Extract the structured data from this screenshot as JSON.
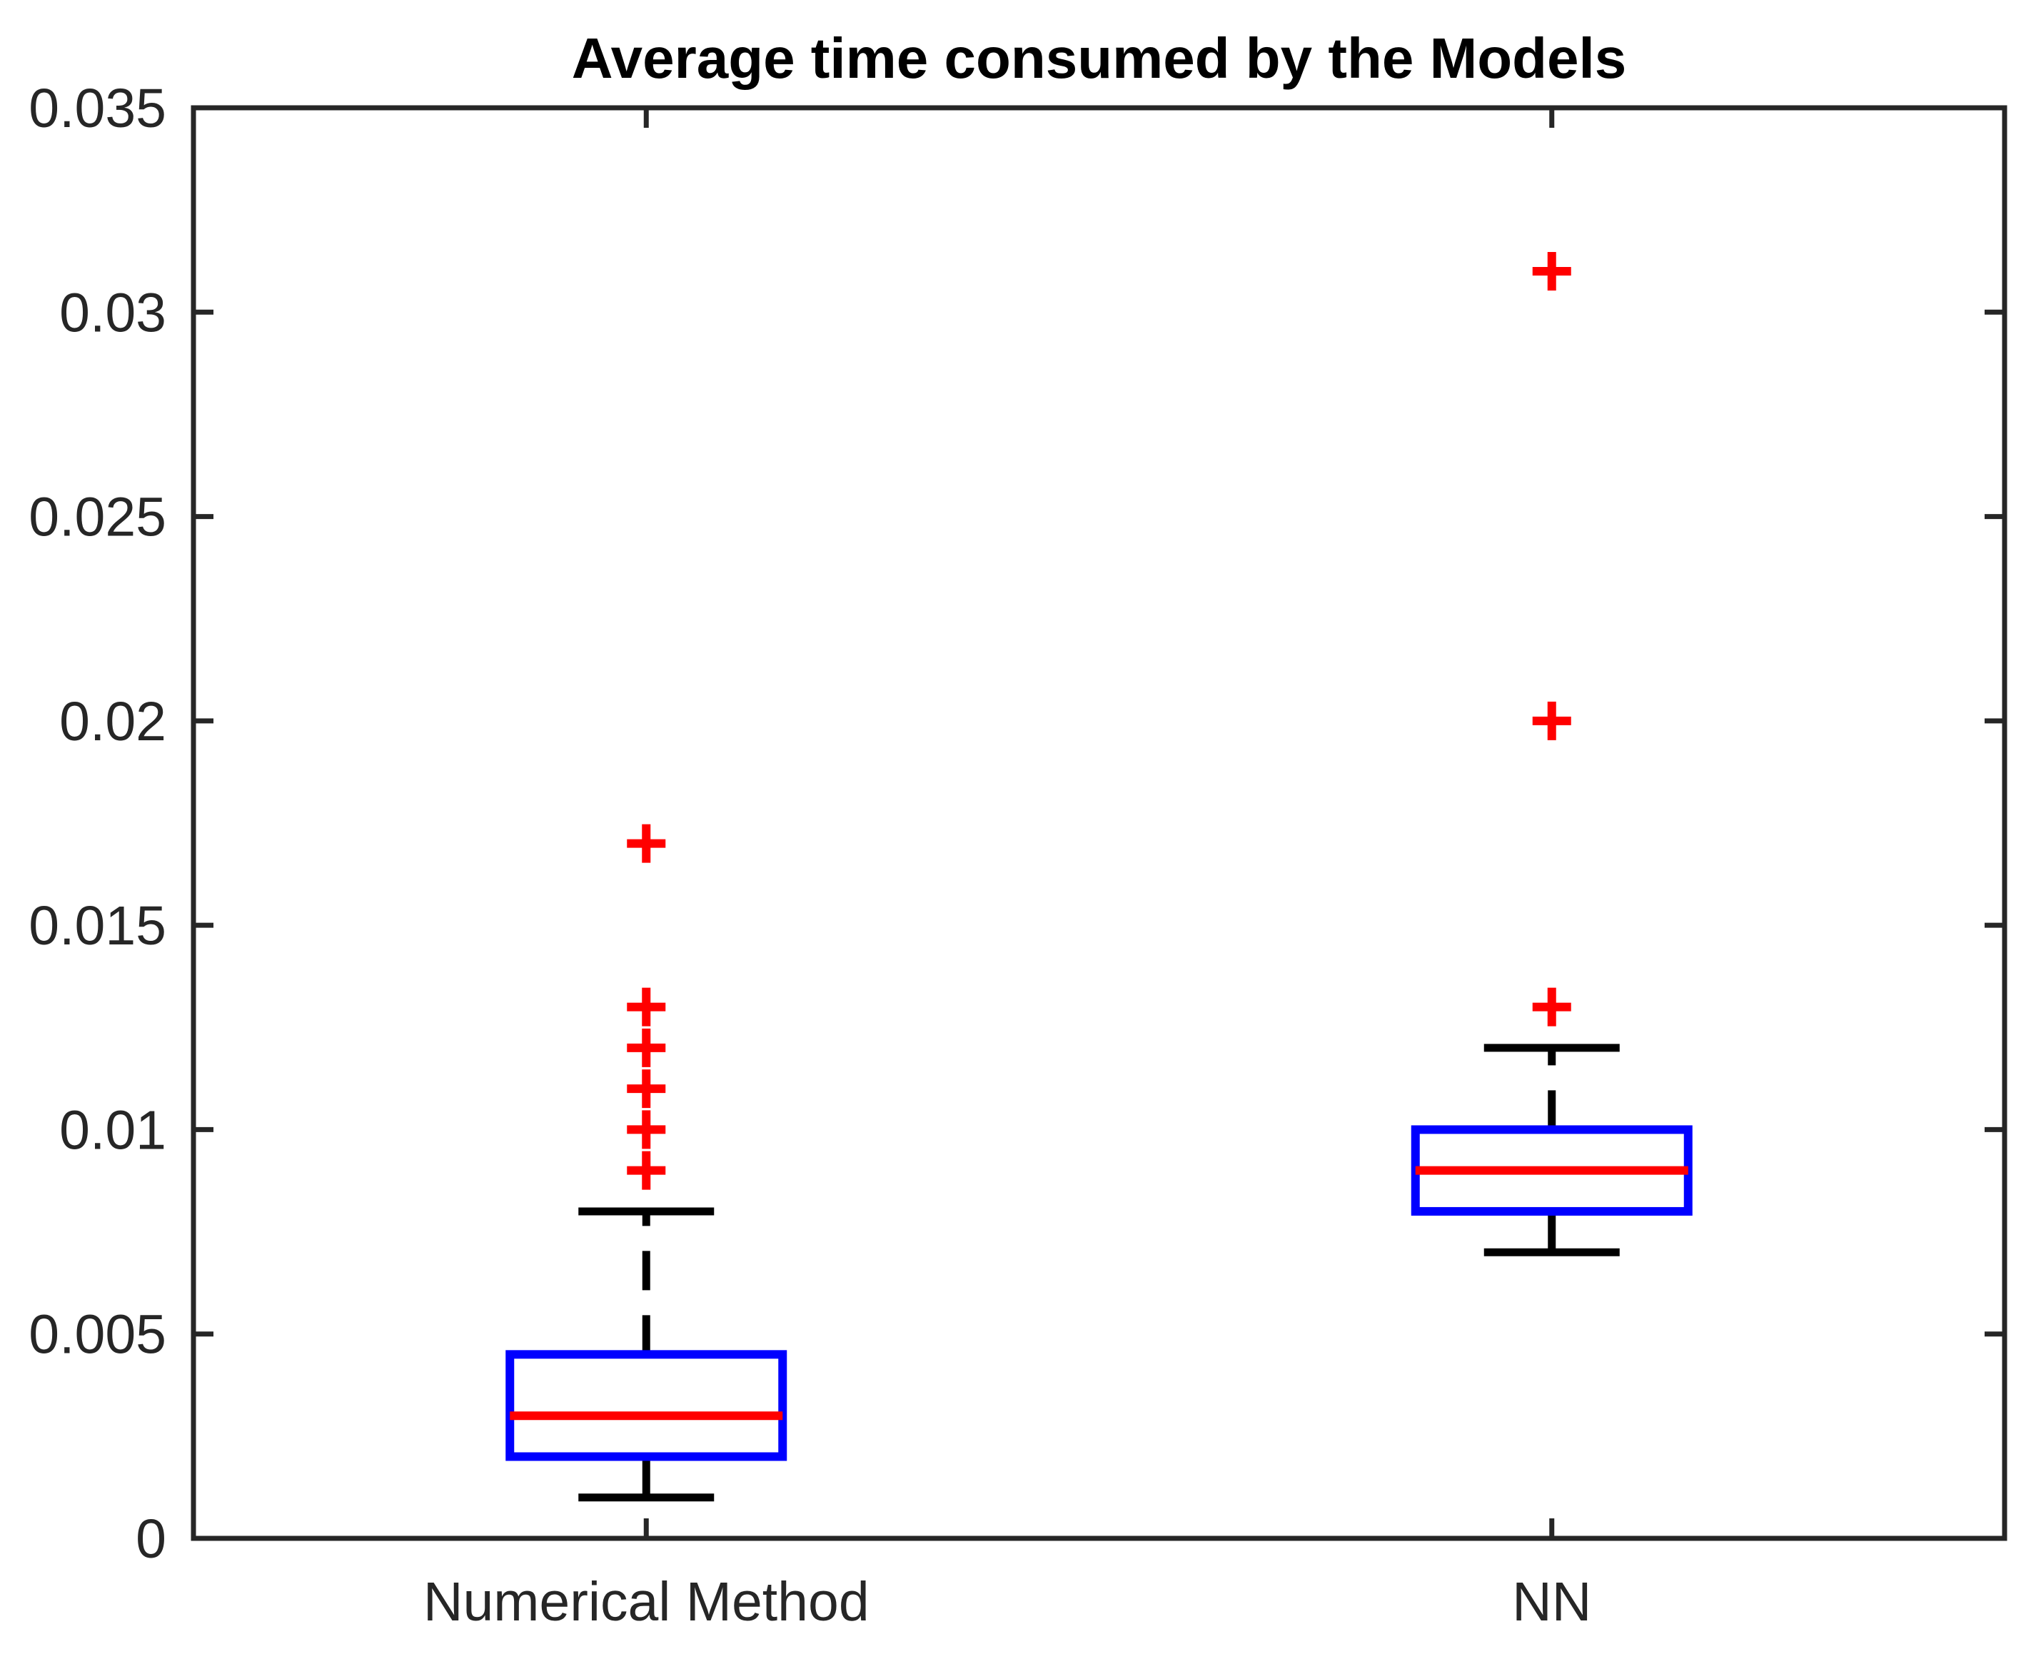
{
  "figure": {
    "background": "#ffffff"
  },
  "colors": {
    "box": "#0000FF",
    "median": "#FF0000",
    "outlier": "#FF0000",
    "whisker": "#000000",
    "axis": "#262626",
    "tick_text": "#262626",
    "title_text": "#000000"
  },
  "chart_data": {
    "type": "boxplot",
    "title": "Average time consumed by the Models",
    "xlabel": "",
    "ylabel": "",
    "grid": false,
    "legend": null,
    "ylim": [
      0,
      0.035
    ],
    "yticks": [
      0,
      0.005,
      0.01,
      0.015,
      0.02,
      0.025,
      0.03,
      0.035
    ],
    "ytick_labels": [
      "0",
      "0.005",
      "0.01",
      "0.015",
      "0.02",
      "0.025",
      "0.03",
      "0.035"
    ],
    "categories": [
      "Numerical Method",
      "NN"
    ],
    "series": [
      {
        "name": "Numerical Method",
        "whisker_low": 0.001,
        "q1": 0.002,
        "median": 0.003,
        "q3": 0.0045,
        "whisker_high": 0.008,
        "outliers": [
          0.009,
          0.01,
          0.011,
          0.012,
          0.013,
          0.017
        ]
      },
      {
        "name": "NN",
        "whisker_low": 0.007,
        "q1": 0.008,
        "median": 0.009,
        "q3": 0.01,
        "whisker_high": 0.012,
        "outliers": [
          0.013,
          0.02,
          0.031
        ]
      }
    ]
  }
}
